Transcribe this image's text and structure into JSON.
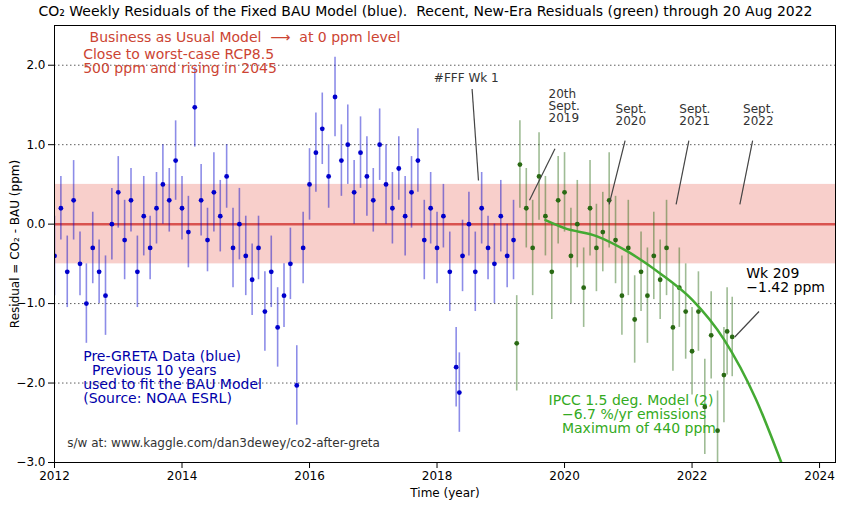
{
  "chart_data": {
    "type": "scatter",
    "title": "CO₂ Weekly Residuals of the Fixed BAU Model (blue).  Recent, New-Era Residuals (green) through 20 Aug 2022",
    "x_label": "Time (year)",
    "y_label": "Residual = CO₂ - BAU (ppm)",
    "xlim": [
      2012,
      2024.25
    ],
    "xticks": [
      2012,
      2014,
      2016,
      2018,
      2020,
      2022,
      2024
    ],
    "ylim": [
      -3,
      2.5
    ],
    "yticks": [
      -3,
      -2,
      -1,
      0,
      1,
      2
    ],
    "grid": true,
    "band": {
      "y1": -0.5,
      "y2": 0.5,
      "color": "#f2a8a0"
    },
    "series": [
      {
        "type": "line",
        "color": "#d9534f",
        "line_style": "solid",
        "x": [
          2012,
          2024.25
        ],
        "values": [
          0,
          0
        ]
      },
      {
        "type": "scatter",
        "color": "#0000cc",
        "marker": "circle",
        "x": [
          2012.0,
          2012.1,
          2012.2,
          2012.3,
          2012.4,
          2012.5,
          2012.6,
          2012.7,
          2012.8,
          2012.9,
          2013.0,
          2013.1,
          2013.2,
          2013.3,
          2013.4,
          2013.5,
          2013.6,
          2013.7,
          2013.8,
          2013.9,
          2014.0,
          2014.1,
          2014.2,
          2014.3,
          2014.4,
          2014.5,
          2014.6,
          2014.7,
          2014.8,
          2014.9,
          2015.0,
          2015.1,
          2015.2,
          2015.3,
          2015.4,
          2015.5,
          2015.6,
          2015.7,
          2015.8,
          2015.9,
          2016.0,
          2016.1,
          2016.2,
          2016.3,
          2016.4,
          2016.5,
          2016.6,
          2016.7,
          2016.8,
          2016.9,
          2017.0,
          2017.1,
          2017.2,
          2017.3,
          2017.4,
          2017.5,
          2017.6,
          2017.7,
          2017.8,
          2017.9,
          2018.0,
          2018.1,
          2018.2,
          2018.3,
          2018.35,
          2018.4,
          2018.5,
          2018.6,
          2018.7,
          2018.8,
          2018.9,
          2019.0,
          2019.1,
          2019.2
        ],
        "values": [
          -0.4,
          0.2,
          -0.6,
          0.3,
          -0.5,
          -1.0,
          -0.3,
          -0.6,
          -0.9,
          0.0,
          0.4,
          -0.2,
          0.3,
          -0.6,
          0.1,
          -0.3,
          0.2,
          0.5,
          0.3,
          0.8,
          0.2,
          -0.1,
          1.47,
          0.3,
          -0.2,
          0.4,
          0.1,
          0.6,
          -0.3,
          0.0,
          -0.4,
          -0.7,
          -0.3,
          -1.1,
          -0.6,
          -1.3,
          -0.9,
          -0.5,
          -2.03,
          -0.3,
          0.5,
          0.9,
          1.2,
          0.6,
          1.6,
          0.8,
          1.0,
          0.4,
          0.9,
          0.6,
          0.3,
          1.0,
          0.5,
          0.2,
          0.7,
          0.1,
          0.4,
          0.8,
          -0.2,
          0.2,
          -0.3,
          0.1,
          -0.6,
          -1.8,
          -2.12,
          -0.4,
          0.0,
          -0.6,
          0.2,
          -0.3,
          -0.5,
          0.1,
          -0.4,
          -0.2
        ],
        "errors": [
          0.5,
          0.4,
          0.45,
          0.5,
          0.4,
          0.5,
          0.45,
          0.4,
          0.5,
          0.45,
          0.45,
          0.5,
          0.4,
          0.45,
          0.5,
          0.4,
          0.45,
          0.5,
          0.4,
          0.5,
          0.4,
          0.45,
          0.5,
          0.45,
          0.4,
          0.5,
          0.45,
          0.4,
          0.5,
          0.45,
          0.5,
          0.45,
          0.4,
          0.5,
          0.45,
          0.5,
          0.4,
          0.45,
          0.5,
          0.45,
          0.45,
          0.5,
          0.45,
          0.4,
          0.5,
          0.45,
          0.5,
          0.4,
          0.45,
          0.5,
          0.4,
          0.45,
          0.5,
          0.45,
          0.4,
          0.5,
          0.45,
          0.4,
          0.5,
          0.45,
          0.45,
          0.4,
          0.5,
          0.5,
          0.5,
          0.45,
          0.4,
          0.5,
          0.45,
          0.4,
          0.5,
          0.45,
          0.4,
          0.5
        ]
      },
      {
        "type": "scatter",
        "color": "#2a6a14",
        "marker": "circle",
        "x": [
          2019.25,
          2019.3,
          2019.4,
          2019.5,
          2019.6,
          2019.7,
          2019.8,
          2019.9,
          2020.0,
          2020.1,
          2020.2,
          2020.3,
          2020.4,
          2020.5,
          2020.6,
          2020.7,
          2020.8,
          2020.9,
          2021.0,
          2021.1,
          2021.2,
          2021.3,
          2021.4,
          2021.5,
          2021.6,
          2021.7,
          2021.8,
          2021.9,
          2022.0,
          2022.1,
          2022.2,
          2022.3,
          2022.4,
          2022.5,
          2022.55,
          2022.63
        ],
        "values": [
          -1.5,
          0.75,
          0.2,
          -0.3,
          0.6,
          0.1,
          -0.6,
          0.3,
          0.4,
          -0.4,
          0.0,
          -0.8,
          0.2,
          -0.3,
          -0.1,
          0.3,
          -0.2,
          -0.9,
          -0.3,
          -1.2,
          -0.6,
          -0.9,
          -0.4,
          -0.7,
          -0.3,
          -1.3,
          -0.8,
          -1.1,
          -1.6,
          -1.1,
          -2.3,
          -1.4,
          -2.6,
          -1.9,
          -1.35,
          -1.42
        ],
        "errors": [
          0.6,
          0.55,
          0.5,
          0.6,
          0.55,
          0.5,
          0.6,
          0.55,
          0.5,
          0.6,
          0.55,
          0.5,
          0.6,
          0.55,
          0.5,
          0.6,
          0.55,
          0.5,
          0.6,
          0.55,
          0.5,
          0.6,
          0.55,
          0.5,
          0.6,
          0.55,
          0.5,
          0.6,
          0.55,
          0.5,
          0.6,
          0.55,
          0.5,
          0.6,
          0.55,
          0.5
        ]
      },
      {
        "type": "line",
        "color": "#44aa33",
        "line_style": "solid",
        "x": [
          2019.7,
          2020.0,
          2020.5,
          2021.0,
          2021.5,
          2022.0,
          2022.5,
          2023.0,
          2023.4
        ],
        "values": [
          0.05,
          -0.05,
          -0.15,
          -0.35,
          -0.62,
          -0.95,
          -1.45,
          -2.2,
          -3.0
        ]
      }
    ],
    "annotations": [
      {
        "text": "Business as Usual Model  ⟶  at 0 ppm level",
        "x": 2012.55,
        "y": 2.42,
        "color": "#cc4433"
      },
      {
        "text": "Close to worst-case RCP8.5\n500 ppm and rising in 2045",
        "x": 2012.45,
        "y": 2.2,
        "color": "#cc4433"
      },
      {
        "text": "#FFF Wk 1",
        "x": 2017.95,
        "y": 1.9,
        "color": "#333333",
        "arrow_from": [
          2018.55,
          1.7
        ],
        "arrow_to": [
          2018.65,
          0.55
        ]
      },
      {
        "text": "20th\nSept.\n2019",
        "x": 2019.75,
        "y": 1.7,
        "color": "#333333",
        "arrow_from": [
          2019.85,
          0.95
        ],
        "arrow_to": [
          2019.45,
          0.3
        ]
      },
      {
        "text": "Sept.\n2020",
        "x": 2020.8,
        "y": 1.5,
        "color": "#333333",
        "arrow_from": [
          2020.95,
          1.05
        ],
        "arrow_to": [
          2020.7,
          0.25
        ]
      },
      {
        "text": "Sept.\n2021",
        "x": 2021.8,
        "y": 1.5,
        "color": "#333333",
        "arrow_from": [
          2021.95,
          1.05
        ],
        "arrow_to": [
          2021.75,
          0.25
        ]
      },
      {
        "text": "Sept.\n2022",
        "x": 2022.8,
        "y": 1.5,
        "color": "#333333",
        "arrow_from": [
          2022.95,
          1.05
        ],
        "arrow_to": [
          2022.75,
          0.25
        ]
      },
      {
        "text": "Wk 209\n−1.42 ppm",
        "x": 2022.85,
        "y": -0.55,
        "color": "#000000",
        "arrow_from": [
          2023.05,
          -1.1
        ],
        "arrow_to": [
          2022.67,
          -1.42
        ]
      },
      {
        "text": "Pre-GRETA Data (blue)\n  Previous 10 years\nused to fit the BAU Model\n(Source: NOAA ESRL)",
        "x": 2012.45,
        "y": -1.6,
        "color": "#0000aa"
      },
      {
        "text": "IPCC 1.5 deg. Model (2)\n   −6.7 %/yr emissions\n   Maximum of 440 ppm",
        "x": 2019.75,
        "y": -2.15,
        "color": "#33aa22"
      },
      {
        "text": "s/w at: www.kaggle.com/dan3dewey/co2-after-greta",
        "x": 2012.2,
        "y": -2.7,
        "color": "#333333"
      }
    ]
  }
}
